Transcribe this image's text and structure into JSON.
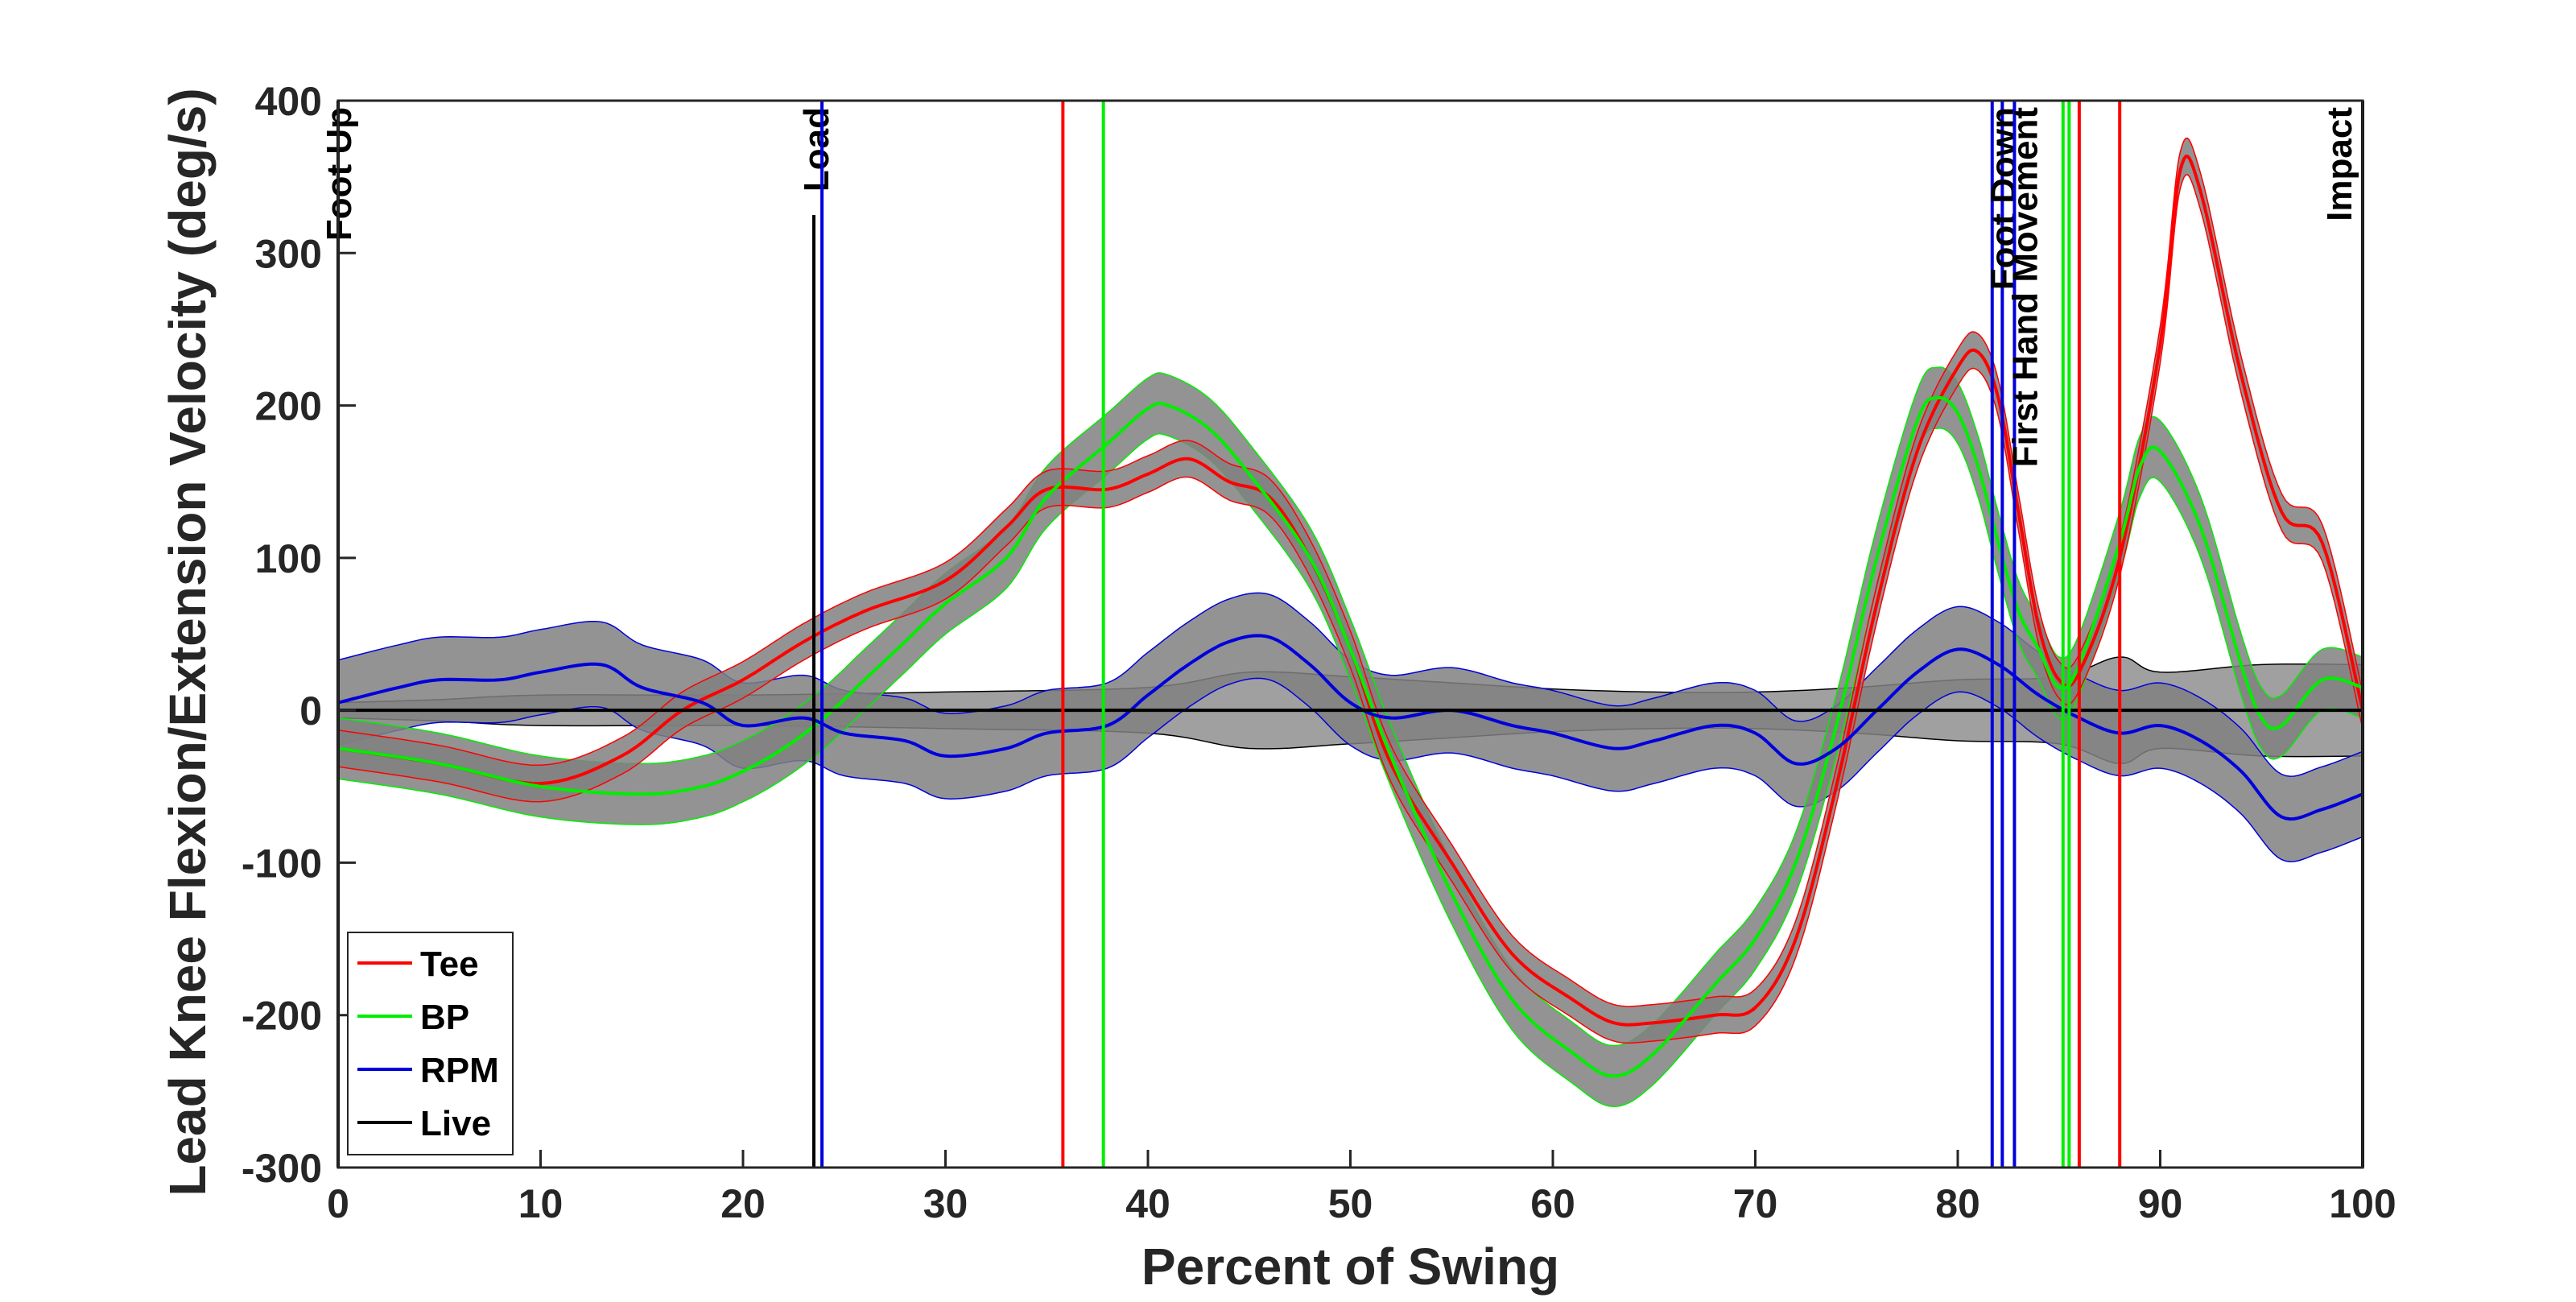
{
  "chart_data": {
    "type": "line",
    "title": "",
    "xlabel": "Percent of Swing",
    "ylabel": "Lead Knee Flexion/Extension Velocity (deg/s)",
    "xlim": [
      0,
      100
    ],
    "ylim": [
      -300,
      400
    ],
    "xticks": [
      0,
      10,
      20,
      30,
      40,
      50,
      60,
      70,
      80,
      90,
      100
    ],
    "yticks": [
      -300,
      -200,
      -100,
      0,
      100,
      200,
      300,
      400
    ],
    "grid": false,
    "legend_position": "bottom-left",
    "series": [
      {
        "name": "Tee",
        "color": "#ff0000",
        "x": [
          0,
          5,
          10,
          14,
          17,
          20,
          23,
          26,
          30,
          33,
          35,
          38,
          40,
          42,
          44,
          46,
          48,
          50,
          52,
          55,
          58,
          61,
          63,
          65,
          68,
          70,
          72,
          74,
          76,
          78,
          80,
          81,
          82,
          83,
          84,
          85,
          86,
          88,
          90,
          91,
          92,
          94,
          96,
          98,
          100
        ],
        "y": [
          -25,
          -35,
          -48,
          -30,
          0,
          20,
          45,
          65,
          85,
          120,
          145,
          145,
          155,
          165,
          150,
          140,
          100,
          40,
          -35,
          -100,
          -160,
          -190,
          -205,
          -205,
          -200,
          -195,
          -150,
          -50,
          70,
          170,
          225,
          235,
          205,
          130,
          55,
          20,
          25,
          100,
          240,
          355,
          340,
          220,
          130,
          110,
          0
        ],
        "band": 12
      },
      {
        "name": "BP",
        "color": "#00ee00",
        "x": [
          0,
          5,
          10,
          15,
          18,
          20,
          22,
          24,
          26,
          28,
          30,
          33,
          35,
          38,
          40,
          41,
          43,
          45,
          48,
          50,
          52,
          55,
          58,
          61,
          63,
          65,
          68,
          70,
          72,
          74,
          76,
          78,
          79,
          80,
          81,
          82,
          83,
          84,
          85,
          86,
          88,
          89,
          90,
          92,
          94,
          95,
          96,
          98,
          100
        ],
        "y": [
          -25,
          -35,
          -50,
          -55,
          -50,
          -40,
          -25,
          -5,
          20,
          45,
          70,
          100,
          140,
          175,
          198,
          200,
          185,
          155,
          100,
          40,
          -30,
          -120,
          -190,
          -225,
          -240,
          -225,
          -180,
          -150,
          -100,
          -10,
          100,
          190,
          205,
          195,
          160,
          110,
          65,
          40,
          15,
          30,
          110,
          160,
          170,
          120,
          30,
          -5,
          -10,
          20,
          15
        ],
        "band": 20
      },
      {
        "name": "RPM",
        "color": "#0000dd",
        "x": [
          0,
          3,
          5,
          8,
          10,
          13,
          15,
          18,
          20,
          23,
          25,
          28,
          30,
          33,
          35,
          38,
          40,
          42,
          44,
          46,
          48,
          50,
          52,
          55,
          58,
          60,
          63,
          65,
          68,
          70,
          72,
          74,
          76,
          78,
          80,
          82,
          84,
          86,
          88,
          90,
          92,
          94,
          96,
          98,
          100
        ],
        "y": [
          5,
          15,
          20,
          20,
          25,
          30,
          15,
          5,
          -10,
          -5,
          -15,
          -20,
          -30,
          -25,
          -15,
          -10,
          10,
          30,
          45,
          48,
          30,
          5,
          -5,
          0,
          -10,
          -15,
          -25,
          -20,
          -10,
          -15,
          -35,
          -25,
          0,
          25,
          40,
          30,
          10,
          -5,
          -15,
          -10,
          -20,
          -40,
          -70,
          -65,
          -55
        ],
        "band": 28
      },
      {
        "name": "Live",
        "color": "#000000",
        "x": [
          0,
          100
        ],
        "y": [
          0,
          0
        ],
        "band_x": [
          0,
          5,
          10,
          20,
          30,
          40,
          45,
          50,
          55,
          60,
          65,
          70,
          75,
          80,
          85,
          88,
          90,
          95,
          100
        ],
        "band_w": [
          5,
          7,
          10,
          10,
          12,
          15,
          25,
          22,
          18,
          14,
          12,
          12,
          15,
          20,
          22,
          35,
          25,
          30,
          30
        ]
      }
    ],
    "event_lines": [
      {
        "x": 0,
        "label": "Foot Up",
        "color": "#000000"
      },
      {
        "x": 23.5,
        "label": "Load",
        "color": "#000000"
      },
      {
        "x": 23.9,
        "label": "",
        "color": "#0000dd"
      },
      {
        "x": 35.8,
        "label": "",
        "color": "#ff0000"
      },
      {
        "x": 37.8,
        "label": "",
        "color": "#00ee00"
      },
      {
        "x": 81.7,
        "label": "",
        "color": "#0000dd"
      },
      {
        "x": 82.2,
        "label": "Foot Down",
        "color": "#0000dd"
      },
      {
        "x": 82.8,
        "label": "First Hand Movement",
        "color": "#0000dd"
      },
      {
        "x": 85.2,
        "label": "",
        "color": "#00ee00"
      },
      {
        "x": 85.5,
        "label": "",
        "color": "#00ee00"
      },
      {
        "x": 86.0,
        "label": "",
        "color": "#ff0000"
      },
      {
        "x": 88.0,
        "label": "",
        "color": "#ff0000"
      },
      {
        "x": 100,
        "label": "Impact",
        "color": "#000000"
      }
    ],
    "legend": [
      {
        "label": "Tee",
        "color": "#ff0000"
      },
      {
        "label": "BP",
        "color": "#00ee00"
      },
      {
        "label": "RPM",
        "color": "#0000dd"
      },
      {
        "label": "Live",
        "color": "#000000"
      }
    ]
  }
}
